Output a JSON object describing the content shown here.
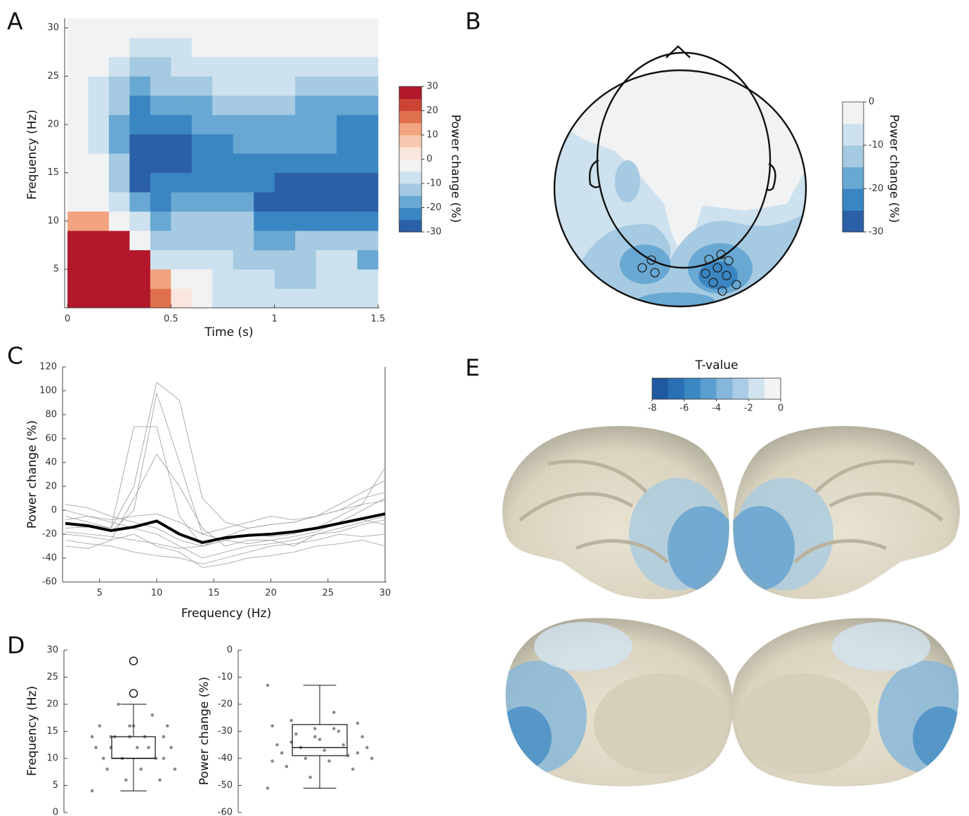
{
  "panel_labels": [
    "A",
    "B",
    "C",
    "D",
    "E"
  ],
  "chart_data": [
    {
      "type": "heatmap",
      "xlabel": "Time (s)",
      "ylabel": "Frequency (Hz)",
      "xlim": [
        0,
        1.5
      ],
      "ylim": [
        1,
        31
      ],
      "xticks": [
        0,
        0.5,
        1,
        1.5
      ],
      "yticks": [
        5,
        10,
        15,
        20,
        25,
        30
      ],
      "xbins": [
        0,
        0.1,
        0.2,
        0.3,
        0.4,
        0.5,
        0.6,
        0.7,
        0.8,
        0.9,
        1.0,
        1.1,
        1.2,
        1.3,
        1.4,
        1.5
      ],
      "ybins": [
        1,
        3,
        5,
        7,
        9,
        11,
        13,
        15,
        17,
        19,
        21,
        23,
        25,
        27,
        29,
        31
      ],
      "values": [
        [
          27,
          30,
          30,
          30,
          15,
          2,
          -2,
          -7,
          -7,
          -7,
          -7,
          -7,
          -7,
          -7,
          -7
        ],
        [
          27,
          30,
          30,
          30,
          12,
          -2,
          -2,
          -7,
          -7,
          -7,
          -12,
          -12,
          -7,
          -7,
          -7
        ],
        [
          27,
          30,
          30,
          25,
          -7,
          -7,
          -7,
          -7,
          -12,
          -12,
          -12,
          -12,
          -7,
          -7,
          -17
        ],
        [
          28,
          30,
          28,
          -2,
          -12,
          -12,
          -12,
          -12,
          -12,
          -17,
          -17,
          -12,
          -12,
          -12,
          -12
        ],
        [
          12,
          12,
          -2,
          -7,
          -17,
          -12,
          -12,
          -12,
          -12,
          -22,
          -22,
          -22,
          -22,
          -22,
          -22
        ],
        [
          -1,
          -1,
          -7,
          -17,
          -22,
          -17,
          -17,
          -17,
          -17,
          -27,
          -27,
          -27,
          -27,
          -27,
          -27
        ],
        [
          -1,
          -1,
          -12,
          -27,
          -22,
          -22,
          -22,
          -22,
          -22,
          -22,
          -27,
          -27,
          -27,
          -27,
          -27
        ],
        [
          -1,
          -1,
          -12,
          -27,
          -27,
          -27,
          -22,
          -22,
          -22,
          -22,
          -22,
          -22,
          -22,
          -22,
          -22
        ],
        [
          -1,
          -7,
          -17,
          -27,
          -27,
          -27,
          -22,
          -22,
          -17,
          -17,
          -17,
          -17,
          -17,
          -22,
          -22
        ],
        [
          -1,
          -7,
          -17,
          -22,
          -22,
          -22,
          -17,
          -17,
          -17,
          -17,
          -17,
          -17,
          -17,
          -22,
          -22
        ],
        [
          -1,
          -7,
          -12,
          -22,
          -17,
          -17,
          -17,
          -12,
          -12,
          -12,
          -12,
          -17,
          -17,
          -17,
          -17
        ],
        [
          -1,
          -7,
          -12,
          -17,
          -12,
          -12,
          -12,
          -7,
          -7,
          -7,
          -7,
          -12,
          -12,
          -12,
          -12
        ],
        [
          -1,
          -1,
          -7,
          -12,
          -12,
          -7,
          -7,
          -7,
          -7,
          -7,
          -7,
          -7,
          -7,
          -7,
          -7
        ],
        [
          -1,
          -1,
          -1,
          -7,
          -7,
          -7,
          -1,
          -1,
          -1,
          -1,
          -1,
          -1,
          -1,
          -1,
          -1
        ],
        [
          -1,
          -1,
          -1,
          -1,
          -1,
          -1,
          -1,
          -1,
          -1,
          -1,
          -1,
          -1,
          -1,
          -1,
          -1
        ]
      ],
      "colorbar": {
        "label": "Power change (%)",
        "lim": [
          -30,
          30
        ],
        "ticks": [
          30,
          20,
          10,
          0,
          -10,
          -20,
          -30
        ],
        "colors": [
          "#2b5fa7",
          "#3a86c3",
          "#68a8d3",
          "#a5cae2",
          "#cde1ee",
          "#f1f2f3",
          "#fae6dc",
          "#f8c8b0",
          "#f2a37f",
          "#e0714f",
          "#cc4436",
          "#b2172b"
        ]
      }
    },
    {
      "type": "topomap",
      "colorbar": {
        "label": "Power change (%)",
        "lim": [
          -30,
          0
        ],
        "ticks": [
          0,
          -10,
          -20,
          -30
        ],
        "colors": [
          "#2b5fa7",
          "#3a86c3",
          "#68a8d3",
          "#a5cae2",
          "#cde1ee",
          "#f1f2f3"
        ]
      }
    },
    {
      "type": "line",
      "xlabel": "Frequency (Hz)",
      "ylabel": "Power change (%)",
      "xlim": [
        2,
        30
      ],
      "ylim": [
        -60,
        120
      ],
      "xticks": [
        5,
        10,
        15,
        20,
        25,
        30
      ],
      "yticks": [
        -60,
        -40,
        -20,
        0,
        20,
        40,
        60,
        80,
        100,
        120
      ],
      "x": [
        2,
        4,
        6,
        8,
        10,
        12,
        14,
        16,
        18,
        20,
        22,
        24,
        26,
        28,
        30
      ],
      "series": [
        {
          "color": "#9a9a9a",
          "values": [
            -5,
            -10,
            -15,
            20,
            107,
            92,
            10,
            -10,
            -15,
            -12,
            -10,
            -5,
            5,
            15,
            25
          ]
        },
        {
          "color": "#9a9a9a",
          "values": [
            -10,
            -12,
            -15,
            70,
            70,
            -5,
            -30,
            -25,
            -20,
            -22,
            -20,
            -15,
            -5,
            5,
            36
          ]
        },
        {
          "color": "#9a9a9a",
          "values": [
            -15,
            -14,
            -18,
            0,
            98,
            40,
            -20,
            -25,
            -28,
            -25,
            -22,
            -18,
            -10,
            0,
            10
          ]
        },
        {
          "color": "#9a9a9a",
          "values": [
            -20,
            -22,
            -25,
            10,
            47,
            20,
            -15,
            -30,
            -25,
            -25,
            -30,
            -20,
            -15,
            -10,
            -5
          ]
        },
        {
          "color": "#9a9a9a",
          "values": [
            0,
            -5,
            -10,
            -15,
            -20,
            -30,
            -40,
            -35,
            -30,
            -28,
            -25,
            -20,
            -18,
            -12,
            -8
          ]
        },
        {
          "color": "#9a9a9a",
          "values": [
            -25,
            -28,
            -30,
            -35,
            -38,
            -40,
            -45,
            -40,
            -35,
            -30,
            -28,
            -25,
            -20,
            -22,
            -20
          ]
        },
        {
          "color": "#9a9a9a",
          "values": [
            5,
            2,
            -5,
            -10,
            -15,
            -25,
            -30,
            -22,
            -15,
            -12,
            -10,
            -5,
            0,
            5,
            8
          ]
        },
        {
          "color": "#9a9a9a",
          "values": [
            -30,
            -32,
            -25,
            -20,
            -30,
            -35,
            -48,
            -45,
            -40,
            -38,
            -35,
            -30,
            -28,
            -25,
            -30
          ]
        },
        {
          "color": "#9a9a9a",
          "values": [
            -8,
            -5,
            -8,
            -5,
            -3,
            -10,
            -20,
            -15,
            -10,
            -5,
            -8,
            -5,
            0,
            10,
            15
          ]
        },
        {
          "color": "#9a9a9a",
          "values": [
            -18,
            -20,
            -22,
            -25,
            -28,
            -32,
            -30,
            -25,
            -20,
            -20,
            -18,
            -15,
            -12,
            -8,
            -12
          ]
        },
        {
          "color": "#000000",
          "values": [
            -11,
            -13,
            -17,
            -14,
            -9,
            -20,
            -27,
            -23,
            -21,
            -20,
            -18,
            -15,
            -11,
            -7,
            -3
          ]
        }
      ]
    },
    {
      "type": "box",
      "ylabel": "Frequency (Hz)",
      "ylim": [
        0,
        30
      ],
      "yticks": [
        0,
        5,
        10,
        15,
        20,
        25,
        30
      ],
      "box": {
        "min": 4,
        "q1": 10,
        "median": 10,
        "q3": 14,
        "max": 20,
        "outliers": [
          22,
          28
        ]
      },
      "points": [
        14,
        14,
        14,
        14,
        14,
        12,
        12,
        14,
        16,
        16,
        16,
        18,
        20,
        12,
        12,
        10,
        10,
        10,
        8,
        8,
        8,
        6,
        6,
        4,
        14,
        12,
        10,
        16
      ],
      "point_color": "#8a8a8a"
    },
    {
      "type": "box",
      "ylabel": "Power change (%)",
      "ylim": [
        -60,
        0
      ],
      "yticks": [
        0,
        -10,
        -20,
        -30,
        -40,
        -50,
        -60
      ],
      "box": {
        "min": -51,
        "q1": -39,
        "median": -36,
        "q3": -27.5,
        "max": -13,
        "outliers": []
      },
      "points": [
        -13,
        -23,
        -26,
        -27,
        -29,
        -28,
        -30,
        -31,
        -32,
        -33,
        -35,
        -35,
        -36,
        -36,
        -37,
        -38,
        -39,
        -40,
        -40,
        -41,
        -43,
        -44,
        -47,
        -51,
        -29,
        -34,
        -38,
        -32,
        -41
      ],
      "point_color": "#8a8a8a"
    },
    {
      "type": "brain",
      "colorbar": {
        "label": "T-value",
        "lim": [
          -8,
          0
        ],
        "ticks": [
          -8,
          -6,
          -4,
          -2,
          0
        ],
        "colors": [
          "#1f5aa0",
          "#2a6fb4",
          "#3b87c2",
          "#5c9ecf",
          "#85b6db",
          "#abcce6",
          "#d2e3f0",
          "#f2f3f4"
        ]
      }
    }
  ]
}
